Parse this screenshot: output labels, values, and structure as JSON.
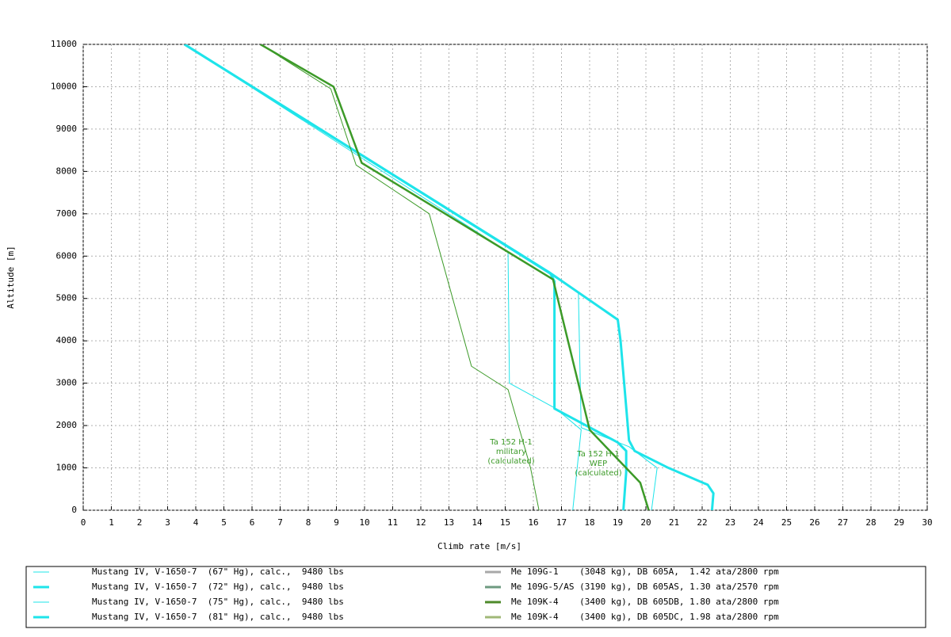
{
  "chart_data": {
    "type": "line",
    "xlabel": "Climb rate [m/s]",
    "ylabel": "Altitude [m]",
    "xlim": [
      0,
      30
    ],
    "ylim": [
      0,
      11000
    ],
    "xticks": [
      0,
      1,
      2,
      3,
      4,
      5,
      6,
      7,
      8,
      9,
      10,
      11,
      12,
      13,
      14,
      15,
      16,
      17,
      18,
      19,
      20,
      21,
      22,
      23,
      24,
      25,
      26,
      27,
      28,
      29,
      30
    ],
    "yticks": [
      0,
      1000,
      2000,
      3000,
      4000,
      5000,
      6000,
      7000,
      8000,
      9000,
      10000,
      11000
    ],
    "grid": true,
    "series": [
      {
        "name": "Mustang IV, V-1650-7  (67\" Hg), calc.,  9480 lbs",
        "color": "#1ee4ea",
        "width": 1,
        "x": [
          3.6,
          15.1,
          15.15,
          16.8,
          17.7,
          17.4
        ],
        "values": [
          11000,
          6100,
          3000,
          2400,
          1900,
          0
        ]
      },
      {
        "name": "Mustang IV, V-1650-7  (72\" Hg), calc.,  9480 lbs",
        "color": "#1ee4ea",
        "width": 3,
        "x": [
          3.6,
          16.6,
          16.75,
          16.75,
          19.0,
          19.3,
          19.3,
          19.2
        ],
        "values": [
          11000,
          5600,
          5400,
          2400,
          1600,
          1400,
          900,
          0
        ]
      },
      {
        "name": "Mustang IV, V-1650-7  (75\" Hg), calc.,  9480 lbs",
        "color": "#1ee4ea",
        "width": 1,
        "x": [
          3.6,
          17.6,
          17.7,
          19.4,
          20.4,
          20.2
        ],
        "values": [
          11000,
          5150,
          1950,
          1500,
          1000,
          0
        ]
      },
      {
        "name": "Mustang IV, V-1650-7  (81\" Hg), calc.,  9480 lbs",
        "color": "#1ee4ea",
        "width": 3,
        "x": [
          3.6,
          16.6,
          19.0,
          19.1,
          19.4,
          19.6,
          20.8,
          22.2,
          22.4,
          22.35
        ],
        "values": [
          11000,
          5600,
          4500,
          4000,
          1650,
          1400,
          1000,
          600,
          400,
          0
        ]
      },
      {
        "name": "Me 109G-1    (3048 kg), DB 605A,  1.42 ata/2800 rpm",
        "color": "#a8a8a8",
        "width": 3,
        "x": [],
        "values": []
      },
      {
        "name": "Me 109G-5/AS (3190 kg), DB 605AS, 1.30 ata/2570 rpm",
        "color": "#6e9a80",
        "width": 3,
        "x": [],
        "values": []
      },
      {
        "name": "Me 109K-4    (3400 kg), DB 605DB, 1.80 ata/2800 rpm",
        "color": "#4e8a2a",
        "width": 3,
        "x": [],
        "values": []
      },
      {
        "name": "Me 109K-4    (3400 kg), DB 605DC, 1.98 ata/2800 rpm",
        "color": "#a0b878",
        "width": 3,
        "x": [],
        "values": []
      },
      {
        "label": [
          "Ta 152 H-1",
          "military",
          "(calculated)"
        ],
        "color": "#3c9a28",
        "width": 1,
        "x": [
          6.3,
          8.8,
          9.7,
          12.3,
          13.8,
          15.1,
          15.9,
          16.2
        ],
        "values": [
          11000,
          9950,
          8150,
          7000,
          3400,
          2850,
          1000,
          0
        ]
      },
      {
        "label": [
          "Ta 152 H-1",
          "WEP",
          "(calculated)"
        ],
        "color": "#3c9a28",
        "width": 2.5,
        "x": [
          6.3,
          8.9,
          9.9,
          16.7,
          18.0,
          19.8,
          20.1
        ],
        "values": [
          11000,
          10000,
          8200,
          5450,
          1900,
          650,
          0
        ]
      }
    ]
  }
}
